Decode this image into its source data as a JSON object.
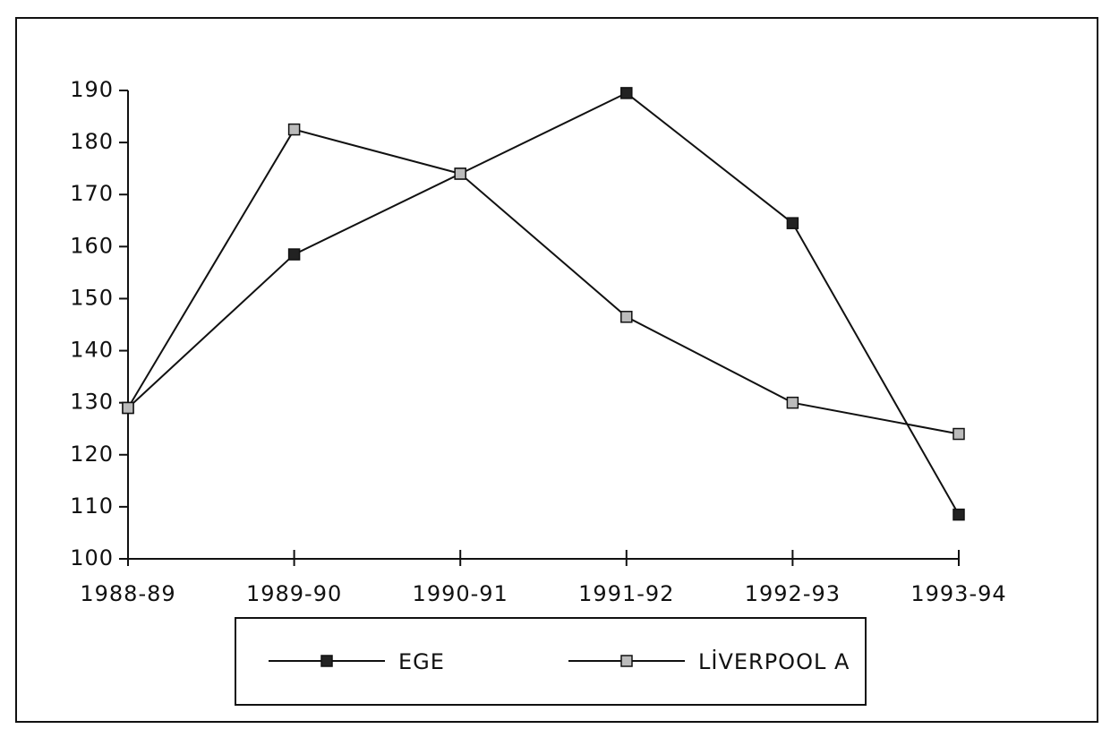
{
  "chart_data": {
    "type": "line",
    "categories": [
      "1988-89",
      "1989-90",
      "1990-91",
      "1991-92",
      "1992-93",
      "1993-94"
    ],
    "series": [
      {
        "name": "EGE",
        "color": "#222222",
        "values": [
          129,
          158.5,
          174,
          189.5,
          164.5,
          108.5
        ]
      },
      {
        "name": "LİVERPOOL A",
        "color": "#bbbbbb",
        "values": [
          129,
          182.5,
          174,
          146.5,
          130,
          124
        ]
      }
    ],
    "ylim": [
      100,
      190
    ],
    "yticks": [
      100,
      110,
      120,
      130,
      140,
      150,
      160,
      170,
      180,
      190
    ],
    "legend": "bottom"
  }
}
